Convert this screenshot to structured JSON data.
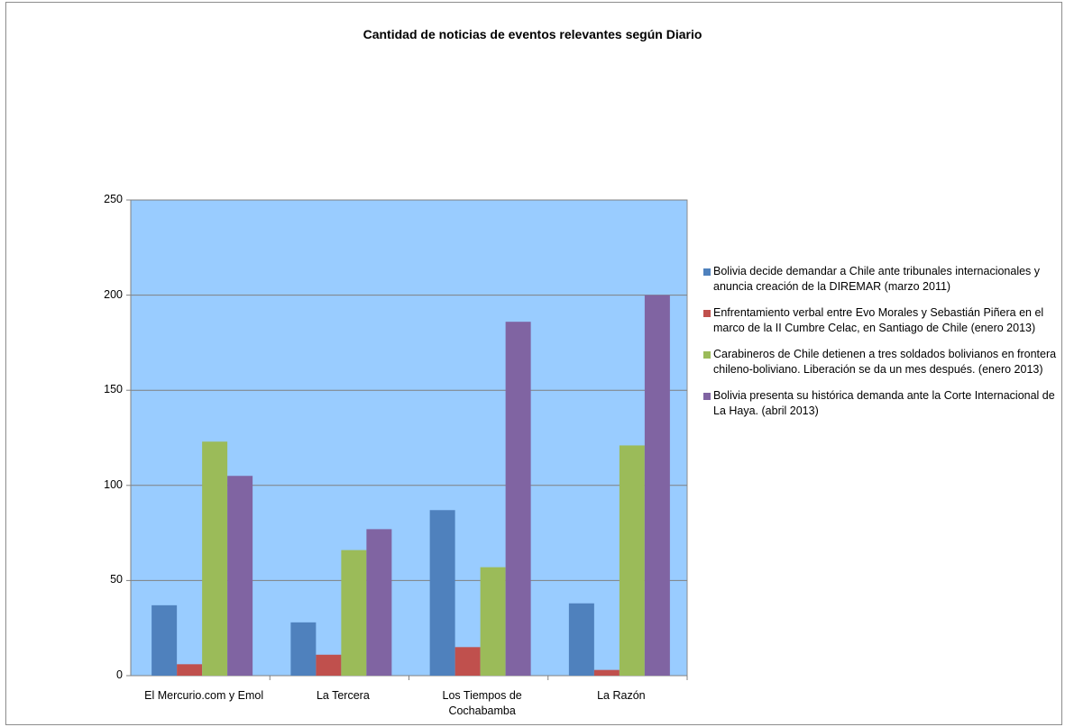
{
  "chart_data": {
    "type": "bar",
    "title": "Cantidad de noticias de eventos relevantes según Diario",
    "categories": [
      "El Mercurio.com y Emol",
      "La Tercera",
      "Los Tiempos de Cochabamba",
      "La Razón"
    ],
    "series": [
      {
        "name": "Bolivia decide demandar a Chile ante tribunales internacionales y anuncia creación de la DIREMAR (marzo 2011)",
        "color": "#4f81bd",
        "values": [
          37,
          28,
          87,
          38
        ]
      },
      {
        "name": "Enfrentamiento verbal entre Evo Morales y Sebastián Piñera en el marco de la II Cumbre Celac, en Santiago de Chile (enero 2013)",
        "color": "#c0504d",
        "values": [
          6,
          11,
          15,
          3
        ]
      },
      {
        "name": "Carabineros de Chile detienen a tres soldados bolivianos en frontera chileno-boliviano. Liberación se da un mes después. (enero 2013)",
        "color": "#9bbb59",
        "values": [
          123,
          66,
          57,
          121
        ]
      },
      {
        "name": "Bolivia presenta su histórica demanda ante la Corte Internacional de La Haya. (abril 2013)",
        "color": "#8064a2",
        "values": [
          105,
          77,
          186,
          200
        ]
      }
    ],
    "ylim": [
      0,
      250
    ],
    "yticks": [
      0,
      50,
      100,
      150,
      200,
      250
    ],
    "grid": true,
    "legend_position": "right",
    "plot_background": "#99ccff"
  }
}
